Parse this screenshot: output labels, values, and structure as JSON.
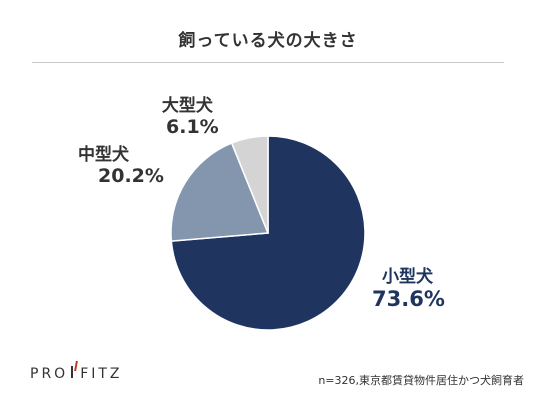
{
  "chart_data": {
    "type": "pie",
    "title": "飼っている犬の大きさ",
    "slices": [
      {
        "label": "小型犬",
        "value": 73.6,
        "display": "73.6%",
        "color": "#1f3560"
      },
      {
        "label": "中型犬",
        "value": 20.2,
        "display": "20.2%",
        "color": "#8496ae"
      },
      {
        "label": "大型犬",
        "value": 6.1,
        "display": "6.1%",
        "color": "#d4d4d4"
      }
    ]
  },
  "footer": {
    "logo_left": "PRO",
    "logo_right": "FITZ",
    "note": "n=326,東京都賃貸物件居住かつ犬飼育者"
  }
}
